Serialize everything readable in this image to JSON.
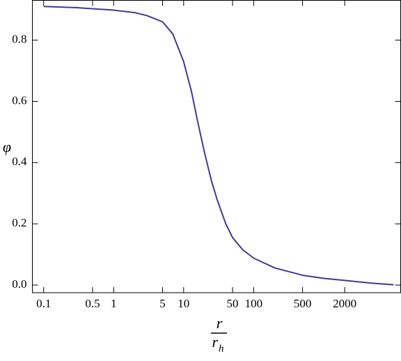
{
  "chart_data": {
    "type": "line",
    "y_label": "φ",
    "x_label": {
      "numerator": "r",
      "denominator": "r",
      "denominator_subscript": "h"
    },
    "x": [
      0.1,
      0.3,
      1,
      2,
      3,
      5,
      7,
      10,
      13,
      16,
      20,
      25,
      30,
      40,
      50,
      70,
      100,
      200,
      500,
      1000,
      2000,
      5000,
      10000
    ],
    "series": [
      {
        "color": "#3b3b9a",
        "values": [
          0.91,
          0.906,
          0.898,
          0.89,
          0.88,
          0.86,
          0.82,
          0.73,
          0.63,
          0.53,
          0.43,
          0.34,
          0.28,
          0.2,
          0.155,
          0.115,
          0.088,
          0.056,
          0.032,
          0.022,
          0.015,
          0.006,
          0.001
        ]
      }
    ],
    "x_scale": "log",
    "xlim": [
      0.069,
      12600
    ],
    "ylim": [
      -0.025,
      0.93
    ],
    "xticks": [
      0.1,
      0.5,
      1,
      5,
      10,
      50,
      100,
      500,
      2000
    ],
    "yticks": [
      {
        "value": 0,
        "label": "0.0"
      },
      0.2,
      0.4,
      0.6,
      0.8
    ]
  }
}
